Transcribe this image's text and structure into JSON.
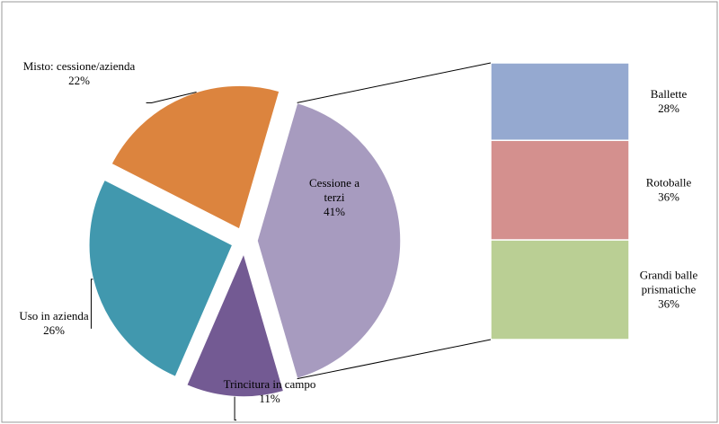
{
  "chart_data": {
    "type": "bar-of-pie",
    "pie": {
      "slices": [
        {
          "label_lines": [
            "Cessione a",
            "terzi"
          ],
          "value_label": "41%",
          "value": 41,
          "color": "#a79bbf",
          "exploded": true
        },
        {
          "label_lines": [
            "Trincitura in campo"
          ],
          "value_label": "11%",
          "value": 11,
          "color": "#735a93",
          "exploded": true
        },
        {
          "label_lines": [
            "Uso in azienda"
          ],
          "value_label": "26%",
          "value": 26,
          "color": "#4198ae",
          "exploded": true
        },
        {
          "label_lines": [
            "Misto: cessione/azienda"
          ],
          "value_label": "22%",
          "value": 22,
          "color": "#dc843e",
          "exploded": true
        }
      ]
    },
    "bar": {
      "parent_slice": "Cessione a terzi",
      "segments": [
        {
          "label_lines": [
            "Ballette"
          ],
          "value_label": "28%",
          "value": 28,
          "color": "#95a9d0"
        },
        {
          "label_lines": [
            "Rotoballe"
          ],
          "value_label": "36%",
          "value": 36,
          "color": "#d4908e"
        },
        {
          "label_lines": [
            "Grandi balle",
            "prismatiche"
          ],
          "value_label": "36%",
          "value": 36,
          "color": "#bacf94"
        }
      ]
    },
    "title": "",
    "legend": "none"
  }
}
